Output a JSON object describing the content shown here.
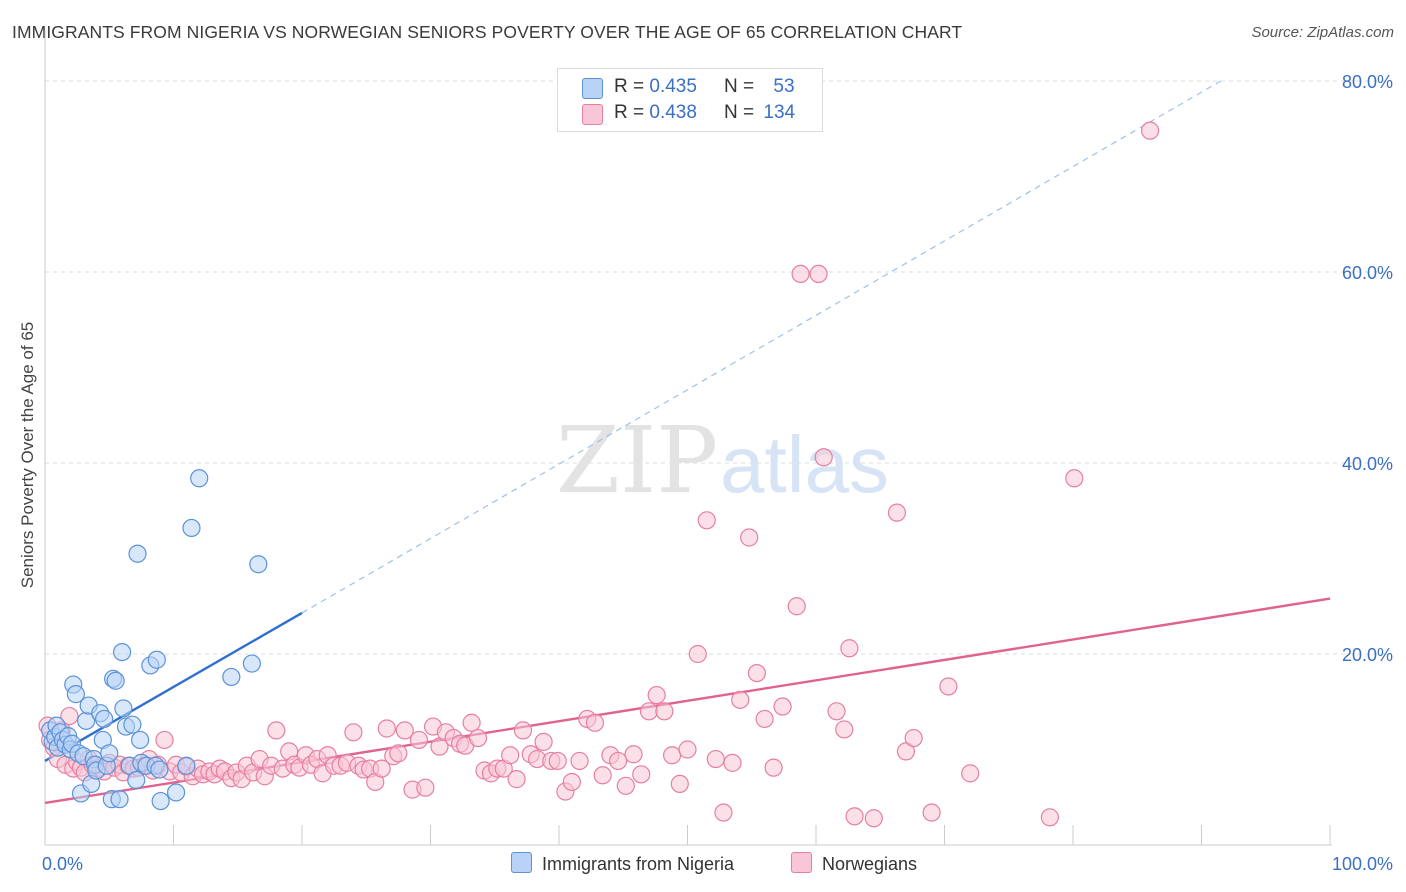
{
  "title": "IMMIGRANTS FROM NIGERIA VS NORWEGIAN SENIORS POVERTY OVER THE AGE OF 65 CORRELATION CHART",
  "source": "Source: ZipAtlas.com",
  "watermark": {
    "zip": "ZIP",
    "atlas": "atlas"
  },
  "legend_top": [
    {
      "r_label": "R =",
      "r_value": "0.435",
      "n_label": "N =",
      "n_value": "53"
    },
    {
      "r_label": "R =",
      "r_value": "0.438",
      "n_label": "N =",
      "n_value": "134"
    }
  ],
  "legend_bottom": [
    "Immigrants from Nigeria",
    "Norwegians"
  ],
  "colors": {
    "blue_fill": "#b8d3f5",
    "blue_stroke": "#5b93d8",
    "blue_line": "#2f6fcf",
    "pink_fill": "#f8c6d6",
    "pink_stroke": "#e77fa2",
    "pink_line": "#e0628e",
    "axis_text": "#3a6fc4",
    "grid": "#dddddd"
  },
  "chart_data": {
    "type": "scatter",
    "title": "IMMIGRANTS FROM NIGERIA VS NORWEGIAN SENIORS POVERTY OVER THE AGE OF 65 CORRELATION CHART",
    "xlabel": "",
    "ylabel": "Seniors Poverty Over the Age of 65",
    "xlim": [
      0,
      100
    ],
    "ylim": [
      0,
      84
    ],
    "x_tick_labels": [
      {
        "value": 0,
        "label": "0.0%"
      },
      {
        "value": 100,
        "label": "100.0%"
      }
    ],
    "y_tick_labels": [
      {
        "value": 20,
        "label": "20.0%"
      },
      {
        "value": 40,
        "label": "40.0%"
      },
      {
        "value": 60,
        "label": "60.0%"
      },
      {
        "value": 80,
        "label": "80.0%"
      }
    ],
    "grid": true,
    "legend_position": "bottom",
    "series": [
      {
        "name": "Immigrants from Nigeria",
        "color": "#5b93d8",
        "trend": {
          "x0": 0,
          "y0": 8.8,
          "x1": 20,
          "y1": 24.3,
          "dashed_to_x": 91.5,
          "dashed_to_y": 80
        },
        "points": [
          [
            0.4,
            12.0
          ],
          [
            0.6,
            10.8
          ],
          [
            0.8,
            11.3
          ],
          [
            0.9,
            12.5
          ],
          [
            1.0,
            10.2
          ],
          [
            1.2,
            11.8
          ],
          [
            1.4,
            11.0
          ],
          [
            1.6,
            10.5
          ],
          [
            1.8,
            11.4
          ],
          [
            2.0,
            10.0
          ],
          [
            2.1,
            10.6
          ],
          [
            2.2,
            16.8
          ],
          [
            2.4,
            15.8
          ],
          [
            2.6,
            9.6
          ],
          [
            2.8,
            5.4
          ],
          [
            3.0,
            9.3
          ],
          [
            3.2,
            13.0
          ],
          [
            3.4,
            14.6
          ],
          [
            3.6,
            6.4
          ],
          [
            3.8,
            9.0
          ],
          [
            3.9,
            8.4
          ],
          [
            4.0,
            7.8
          ],
          [
            4.3,
            13.8
          ],
          [
            4.5,
            11.0
          ],
          [
            4.6,
            13.2
          ],
          [
            4.8,
            8.3
          ],
          [
            5.0,
            9.6
          ],
          [
            5.2,
            4.8
          ],
          [
            5.3,
            17.4
          ],
          [
            5.5,
            17.2
          ],
          [
            5.8,
            4.8
          ],
          [
            6.0,
            20.2
          ],
          [
            6.1,
            14.3
          ],
          [
            6.3,
            12.4
          ],
          [
            6.6,
            8.3
          ],
          [
            6.8,
            12.6
          ],
          [
            7.1,
            6.8
          ],
          [
            7.2,
            30.5
          ],
          [
            7.4,
            11.0
          ],
          [
            7.5,
            8.6
          ],
          [
            7.9,
            8.3
          ],
          [
            8.2,
            18.8
          ],
          [
            8.6,
            8.3
          ],
          [
            8.7,
            19.4
          ],
          [
            8.9,
            7.9
          ],
          [
            9.0,
            4.6
          ],
          [
            10.2,
            5.5
          ],
          [
            11.0,
            8.3
          ],
          [
            11.4,
            33.2
          ],
          [
            12.0,
            38.4
          ],
          [
            14.5,
            17.6
          ],
          [
            16.1,
            19.0
          ],
          [
            16.6,
            29.4
          ]
        ]
      },
      {
        "name": "Norwegians",
        "color": "#e77fa2",
        "trend": {
          "x0": 0,
          "y0": 4.4,
          "x1": 100,
          "y1": 25.8
        },
        "points": [
          [
            0.2,
            12.5
          ],
          [
            0.4,
            11.0
          ],
          [
            0.7,
            10.2
          ],
          [
            1.0,
            9.0
          ],
          [
            1.3,
            12.0
          ],
          [
            1.6,
            8.4
          ],
          [
            1.9,
            13.5
          ],
          [
            2.2,
            8.0
          ],
          [
            2.5,
            8.7
          ],
          [
            2.8,
            8.1
          ],
          [
            3.1,
            7.6
          ],
          [
            3.4,
            9.0
          ],
          [
            3.7,
            8.4
          ],
          [
            4.0,
            8.0
          ],
          [
            4.3,
            8.1
          ],
          [
            4.6,
            7.7
          ],
          [
            5.0,
            8.6
          ],
          [
            5.4,
            8.1
          ],
          [
            5.8,
            8.4
          ],
          [
            6.1,
            7.6
          ],
          [
            6.5,
            8.3
          ],
          [
            6.9,
            8.0
          ],
          [
            7.3,
            8.1
          ],
          [
            7.7,
            8.3
          ],
          [
            8.1,
            9.0
          ],
          [
            8.4,
            7.8
          ],
          [
            8.8,
            8.4
          ],
          [
            9.3,
            11.0
          ],
          [
            9.7,
            7.7
          ],
          [
            10.2,
            8.4
          ],
          [
            10.6,
            7.6
          ],
          [
            11.0,
            8.2
          ],
          [
            11.5,
            7.2
          ],
          [
            11.9,
            8.0
          ],
          [
            12.3,
            7.4
          ],
          [
            12.8,
            7.7
          ],
          [
            13.2,
            7.4
          ],
          [
            13.6,
            8.0
          ],
          [
            14.0,
            7.7
          ],
          [
            14.5,
            7.0
          ],
          [
            14.9,
            7.6
          ],
          [
            15.3,
            6.9
          ],
          [
            15.7,
            8.3
          ],
          [
            16.2,
            7.6
          ],
          [
            16.7,
            9.0
          ],
          [
            17.1,
            7.2
          ],
          [
            17.6,
            8.3
          ],
          [
            18.0,
            12.0
          ],
          [
            18.5,
            8.0
          ],
          [
            19.0,
            9.8
          ],
          [
            19.4,
            8.4
          ],
          [
            19.8,
            8.1
          ],
          [
            20.3,
            9.4
          ],
          [
            20.7,
            8.4
          ],
          [
            21.2,
            9.0
          ],
          [
            21.6,
            7.5
          ],
          [
            22.0,
            9.4
          ],
          [
            22.5,
            8.3
          ],
          [
            23.0,
            8.3
          ],
          [
            23.5,
            8.6
          ],
          [
            24.0,
            11.8
          ],
          [
            24.4,
            8.3
          ],
          [
            24.8,
            7.9
          ],
          [
            25.3,
            8.0
          ],
          [
            25.7,
            6.6
          ],
          [
            26.2,
            8.0
          ],
          [
            26.6,
            12.2
          ],
          [
            27.1,
            9.3
          ],
          [
            27.5,
            9.6
          ],
          [
            28.0,
            12.0
          ],
          [
            28.6,
            5.8
          ],
          [
            29.1,
            11.0
          ],
          [
            29.6,
            6.0
          ],
          [
            30.2,
            12.4
          ],
          [
            30.7,
            10.3
          ],
          [
            31.2,
            11.8
          ],
          [
            31.8,
            11.2
          ],
          [
            32.3,
            10.6
          ],
          [
            32.7,
            10.4
          ],
          [
            33.2,
            12.8
          ],
          [
            33.7,
            11.2
          ],
          [
            34.2,
            7.8
          ],
          [
            34.7,
            7.5
          ],
          [
            35.2,
            8.0
          ],
          [
            35.7,
            8.0
          ],
          [
            36.2,
            9.4
          ],
          [
            36.7,
            6.9
          ],
          [
            37.2,
            12.0
          ],
          [
            37.8,
            9.5
          ],
          [
            38.3,
            9.0
          ],
          [
            38.8,
            10.8
          ],
          [
            39.4,
            8.8
          ],
          [
            39.9,
            8.8
          ],
          [
            40.5,
            5.6
          ],
          [
            41.0,
            6.6
          ],
          [
            41.6,
            8.8
          ],
          [
            42.2,
            13.2
          ],
          [
            42.8,
            12.8
          ],
          [
            43.4,
            7.3
          ],
          [
            44.0,
            9.4
          ],
          [
            44.6,
            8.8
          ],
          [
            45.2,
            6.2
          ],
          [
            45.8,
            9.5
          ],
          [
            46.4,
            7.4
          ],
          [
            47.0,
            14.0
          ],
          [
            47.6,
            15.7
          ],
          [
            48.2,
            14.0
          ],
          [
            48.8,
            9.4
          ],
          [
            49.4,
            6.4
          ],
          [
            50.0,
            10.0
          ],
          [
            50.8,
            20.0
          ],
          [
            51.5,
            34.0
          ],
          [
            52.2,
            9.0
          ],
          [
            52.8,
            3.4
          ],
          [
            53.5,
            8.6
          ],
          [
            54.1,
            15.2
          ],
          [
            54.8,
            32.2
          ],
          [
            55.4,
            18.0
          ],
          [
            56.0,
            13.2
          ],
          [
            56.7,
            8.1
          ],
          [
            57.4,
            14.5
          ],
          [
            58.5,
            25.0
          ],
          [
            58.8,
            59.8
          ],
          [
            60.2,
            59.8
          ],
          [
            60.6,
            40.6
          ],
          [
            61.6,
            14.0
          ],
          [
            62.2,
            12.1
          ],
          [
            62.6,
            20.6
          ],
          [
            63.0,
            3.0
          ],
          [
            64.5,
            2.8
          ],
          [
            66.3,
            34.8
          ],
          [
            67.0,
            9.8
          ],
          [
            67.6,
            11.2
          ],
          [
            69.0,
            3.4
          ],
          [
            70.3,
            16.6
          ],
          [
            72.0,
            7.5
          ],
          [
            78.2,
            2.9
          ],
          [
            80.1,
            38.4
          ],
          [
            86.0,
            74.8
          ]
        ]
      }
    ]
  }
}
